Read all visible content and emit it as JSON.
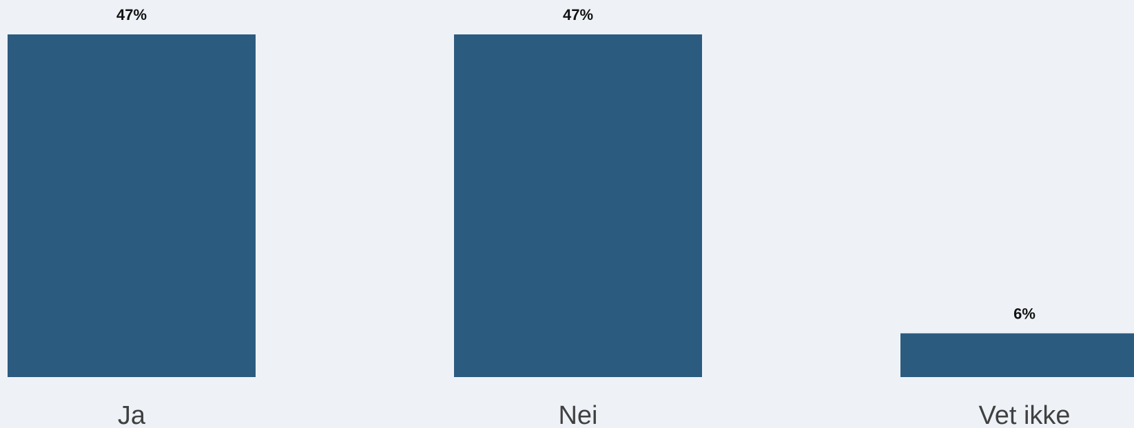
{
  "chart_data": {
    "type": "bar",
    "categories": [
      "Ja",
      "Nei",
      "Vet ikke"
    ],
    "values": [
      47,
      47,
      6
    ],
    "data_labels": [
      "47%",
      "47%",
      "6%"
    ],
    "title": "",
    "xlabel": "",
    "ylabel": "",
    "ylim": [
      0,
      47
    ],
    "grid": false,
    "legend": "none",
    "bar_color": "#2c5b80"
  }
}
